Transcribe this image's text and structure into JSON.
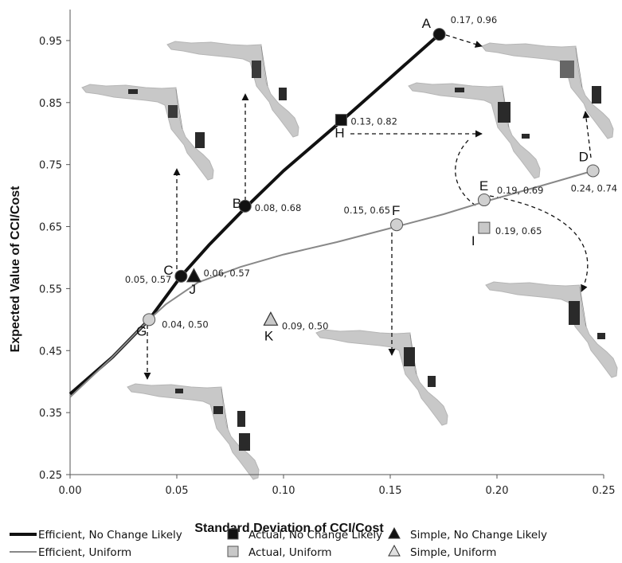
{
  "chart_data": {
    "type": "line",
    "title": "",
    "xlabel": "Standard Deviation of CCI/Cost",
    "ylabel": "Expected Value of CCI/Cost",
    "xlim": [
      0,
      0.25
    ],
    "ylim": [
      0.25,
      1.0
    ],
    "x_ticks": [
      "0.00",
      "0.05",
      "0.10",
      "0.15",
      "0.20",
      "0.25"
    ],
    "y_ticks": [
      "0.25",
      "0.35",
      "0.45",
      "0.55",
      "0.65",
      "0.75",
      "0.85",
      "0.95"
    ],
    "grid": false,
    "legend_position": "bottom",
    "legend": [
      "Efficient, No Change Likely",
      "Actual, No Change Likely",
      "Simple, No Change Likely",
      "Efficient, Uniform",
      "Actual, Uniform",
      "Simple, Uniform"
    ],
    "series": [
      {
        "name": "Efficient, No Change Likely",
        "color": "#111111",
        "x": [
          0.0,
          0.02,
          0.037,
          0.052,
          0.065,
          0.082,
          0.1,
          0.127,
          0.15,
          0.173
        ],
        "y": [
          0.38,
          0.44,
          0.5,
          0.57,
          0.62,
          0.68,
          0.74,
          0.82,
          0.89,
          0.96
        ]
      },
      {
        "name": "Efficient, Uniform",
        "color": "#888888",
        "x": [
          0.0,
          0.02,
          0.037,
          0.045,
          0.06,
          0.08,
          0.1,
          0.125,
          0.153,
          0.175,
          0.194,
          0.22,
          0.245
        ],
        "y": [
          0.375,
          0.44,
          0.5,
          0.525,
          0.56,
          0.585,
          0.605,
          0.625,
          0.65,
          0.67,
          0.69,
          0.715,
          0.74
        ]
      }
    ],
    "points": [
      {
        "letter": "A",
        "label": "0.17, 0.96",
        "x": 0.173,
        "y": 0.96,
        "marker": "circle",
        "fill": "#111111"
      },
      {
        "letter": "B",
        "label": "0.08, 0.68",
        "x": 0.082,
        "y": 0.683,
        "marker": "circle",
        "fill": "#111111"
      },
      {
        "letter": "C",
        "label": "0.05, 0.57",
        "x": 0.052,
        "y": 0.57,
        "marker": "circle",
        "fill": "#111111"
      },
      {
        "letter": "D",
        "label": "0.24, 0.74",
        "x": 0.245,
        "y": 0.74,
        "marker": "circle",
        "fill": "#d0d0d0"
      },
      {
        "letter": "E",
        "label": "0.19, 0.69",
        "x": 0.194,
        "y": 0.693,
        "marker": "circle",
        "fill": "#d0d0d0"
      },
      {
        "letter": "F",
        "label": "0.15, 0.65",
        "x": 0.153,
        "y": 0.653,
        "marker": "circle",
        "fill": "#d0d0d0"
      },
      {
        "letter": "G",
        "label": "0.04, 0.50",
        "x": 0.037,
        "y": 0.5,
        "marker": "circle",
        "fill": "#d0d0d0"
      },
      {
        "letter": "H",
        "label": "0.13, 0.82",
        "x": 0.127,
        "y": 0.822,
        "marker": "square",
        "fill": "#111111"
      },
      {
        "letter": "I",
        "label": "0.19, 0.65",
        "x": 0.194,
        "y": 0.648,
        "marker": "square",
        "fill": "#c8c8c8"
      },
      {
        "letter": "J",
        "label": "0.06, 0.57",
        "x": 0.058,
        "y": 0.57,
        "marker": "triangle",
        "fill": "#111111"
      },
      {
        "letter": "K",
        "label": "0.09, 0.50",
        "x": 0.094,
        "y": 0.5,
        "marker": "triangle",
        "fill": "#c8c8c8"
      }
    ]
  }
}
